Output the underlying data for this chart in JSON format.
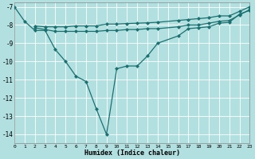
{
  "xlabel": "Humidex (Indice chaleur)",
  "bg_color": "#b2e0e0",
  "grid_color": "#ffffff",
  "line_color": "#1a7070",
  "line1_x": [
    0,
    1,
    2,
    3,
    4,
    5,
    6,
    7,
    8,
    9,
    10,
    11,
    12,
    13,
    14,
    16,
    17,
    18,
    19,
    20,
    21,
    22,
    23
  ],
  "line1_y": [
    -7.0,
    -7.8,
    -8.3,
    -8.3,
    -9.35,
    -10.0,
    -10.8,
    -11.1,
    -12.6,
    -14.0,
    -10.4,
    -10.25,
    -10.25,
    -9.7,
    -9.0,
    -8.6,
    -8.2,
    -8.15,
    -8.1,
    -7.9,
    -7.85,
    -7.4,
    -7.2
  ],
  "line2_x": [
    2,
    3,
    4,
    5,
    6,
    7,
    8,
    9,
    10,
    11,
    12,
    13,
    14,
    16,
    17,
    18,
    19,
    20,
    21,
    22,
    23
  ],
  "line2_y": [
    -8.15,
    -8.25,
    -8.35,
    -8.35,
    -8.35,
    -8.35,
    -8.35,
    -8.3,
    -8.3,
    -8.25,
    -8.25,
    -8.2,
    -8.2,
    -8.1,
    -8.0,
    -8.0,
    -7.9,
    -7.8,
    -7.75,
    -7.45,
    -7.15
  ],
  "line3_x": [
    2,
    3,
    4,
    5,
    6,
    7,
    8,
    9,
    10,
    11,
    12,
    13,
    14,
    16,
    17,
    18,
    19,
    20,
    21,
    22,
    23
  ],
  "line3_y": [
    -8.05,
    -8.1,
    -8.1,
    -8.1,
    -8.05,
    -8.05,
    -8.05,
    -7.95,
    -7.95,
    -7.92,
    -7.9,
    -7.88,
    -7.85,
    -7.75,
    -7.7,
    -7.65,
    -7.6,
    -7.5,
    -7.5,
    -7.25,
    -7.0
  ],
  "xlim": [
    0,
    23
  ],
  "ylim": [
    -14.5,
    -6.75
  ],
  "yticks": [
    -7,
    -8,
    -9,
    -10,
    -11,
    -12,
    -13,
    -14
  ],
  "xticks": [
    0,
    1,
    2,
    3,
    4,
    5,
    6,
    7,
    8,
    9,
    10,
    11,
    12,
    13,
    14,
    15,
    16,
    17,
    18,
    19,
    20,
    21,
    22,
    23
  ],
  "marker_size": 2.5,
  "linewidth": 0.9
}
